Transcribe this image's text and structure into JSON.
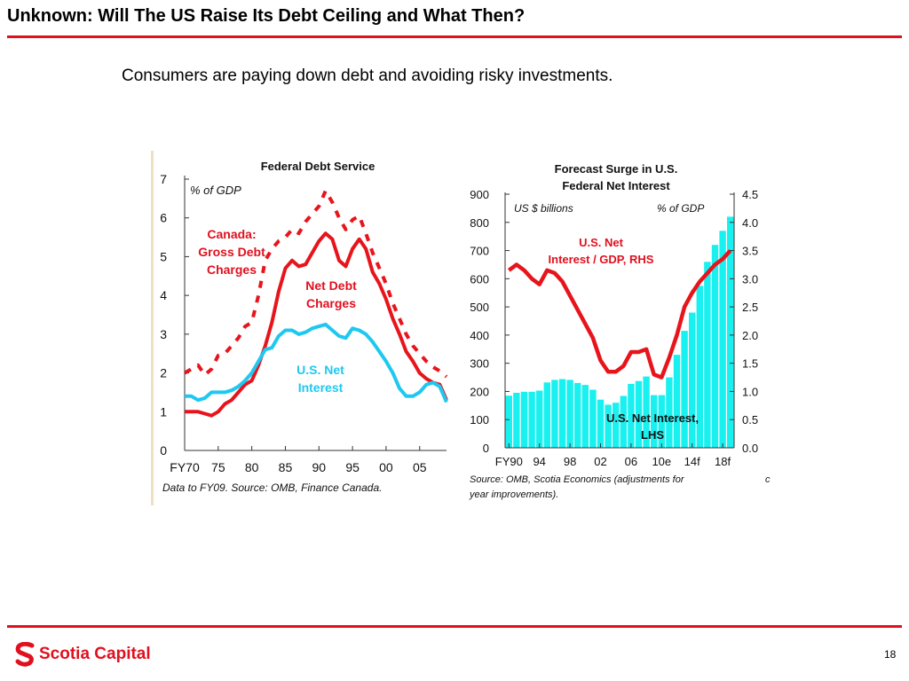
{
  "slide": {
    "title": "Unknown: Will The US Raise Its Debt Ceiling and What Then?",
    "subtitle": "Consumers are paying down debt and avoiding risky investments.",
    "page_number": "18",
    "logo_text": "Scotia Capital"
  },
  "colors": {
    "accent": "#e0101e",
    "canada_line": "#e8141c",
    "us_line": "#1ec8f0",
    "us_bars": "#19f0f0"
  },
  "chart_data": [
    {
      "type": "line",
      "title": "Federal Debt Service",
      "ylabel": "% of GDP",
      "xlabel": "",
      "ylim": [
        0,
        7
      ],
      "xlim": [
        1970,
        2009
      ],
      "yticks": [
        "0",
        "1",
        "2",
        "3",
        "4",
        "5",
        "6",
        "7"
      ],
      "xtick_values": [
        1970,
        1975,
        1980,
        1985,
        1990,
        1995,
        2000,
        2005
      ],
      "xtick_labels": [
        "FY70",
        "75",
        "80",
        "85",
        "90",
        "95",
        "00",
        "05"
      ],
      "grid": false,
      "series": [
        {
          "name": "Canada: Gross Debt Charges",
          "style": "dashed",
          "x": [
            1970,
            1971,
            1972,
            1973,
            1974,
            1975,
            1976,
            1977,
            1978,
            1979,
            1980,
            1981,
            1982,
            1983,
            1984,
            1985,
            1986,
            1987,
            1988,
            1989,
            1990,
            1991,
            1992,
            1993,
            1994,
            1995,
            1996,
            1997,
            1998,
            1999,
            2000,
            2001,
            2002,
            2003,
            2004,
            2005,
            2006,
            2007,
            2008,
            2009
          ],
          "values": [
            2.0,
            2.1,
            2.2,
            1.95,
            2.1,
            2.45,
            2.5,
            2.7,
            2.9,
            3.2,
            3.3,
            4.0,
            4.9,
            5.2,
            5.4,
            5.5,
            5.7,
            5.6,
            5.9,
            6.1,
            6.3,
            6.7,
            6.4,
            6.0,
            5.7,
            5.95,
            6.05,
            5.6,
            5.1,
            4.7,
            4.3,
            3.8,
            3.4,
            3.0,
            2.7,
            2.5,
            2.3,
            2.15,
            2.05,
            1.9
          ]
        },
        {
          "name": "Net Debt Charges",
          "style": "solid",
          "x": [
            1970,
            1971,
            1972,
            1973,
            1974,
            1975,
            1976,
            1977,
            1978,
            1979,
            1980,
            1981,
            1982,
            1983,
            1984,
            1985,
            1986,
            1987,
            1988,
            1989,
            1990,
            1991,
            1992,
            1993,
            1994,
            1995,
            1996,
            1997,
            1998,
            1999,
            2000,
            2001,
            2002,
            2003,
            2004,
            2005,
            2006,
            2007,
            2008,
            2009
          ],
          "values": [
            1.0,
            1.0,
            1.0,
            0.95,
            0.9,
            1.0,
            1.2,
            1.3,
            1.5,
            1.7,
            1.8,
            2.2,
            2.7,
            3.3,
            4.1,
            4.7,
            4.9,
            4.75,
            4.8,
            5.1,
            5.4,
            5.6,
            5.45,
            4.9,
            4.75,
            5.2,
            5.45,
            5.2,
            4.6,
            4.3,
            3.9,
            3.4,
            3.0,
            2.55,
            2.3,
            2.0,
            1.85,
            1.75,
            1.7,
            1.3
          ]
        },
        {
          "name": "U.S. Net Interest",
          "style": "solid",
          "x": [
            1970,
            1971,
            1972,
            1973,
            1974,
            1975,
            1976,
            1977,
            1978,
            1979,
            1980,
            1981,
            1982,
            1983,
            1984,
            1985,
            1986,
            1987,
            1988,
            1989,
            1990,
            1991,
            1992,
            1993,
            1994,
            1995,
            1996,
            1997,
            1998,
            1999,
            2000,
            2001,
            2002,
            2003,
            2004,
            2005,
            2006,
            2007,
            2008,
            2009
          ],
          "values": [
            1.4,
            1.4,
            1.3,
            1.35,
            1.5,
            1.5,
            1.5,
            1.55,
            1.65,
            1.8,
            2.0,
            2.3,
            2.6,
            2.65,
            2.95,
            3.1,
            3.1,
            3.0,
            3.05,
            3.15,
            3.2,
            3.25,
            3.1,
            2.95,
            2.9,
            3.15,
            3.1,
            3.0,
            2.8,
            2.55,
            2.3,
            2.0,
            1.6,
            1.4,
            1.4,
            1.5,
            1.7,
            1.75,
            1.65,
            1.25
          ]
        }
      ],
      "annotations": [
        {
          "text_lines": [
            "Canada:",
            "Gross Debt",
            "Charges"
          ],
          "color": "red"
        },
        {
          "text_lines": [
            "Net Debt",
            "Charges"
          ],
          "color": "red"
        },
        {
          "text_lines": [
            "U.S. Net",
            "Interest"
          ],
          "color": "cyan"
        }
      ],
      "source": "Data to FY09. Source: OMB, Finance Canada."
    },
    {
      "type": "bar",
      "title": "Forecast Surge in U.S. Federal Net Interest",
      "title_lines": [
        "Forecast Surge in U.S.",
        "Federal Net Interest"
      ],
      "ylabel": "US $ billions",
      "y2label": "% of GDP",
      "ylim": [
        0,
        900
      ],
      "y2lim": [
        0,
        4.5
      ],
      "yticks": [
        "0",
        "100",
        "200",
        "300",
        "400",
        "500",
        "600",
        "700",
        "800",
        "900"
      ],
      "y2ticks": [
        "0.0",
        "0.5",
        "1.0",
        "1.5",
        "2.0",
        "2.5",
        "3.0",
        "3.5",
        "4.0",
        "4.5"
      ],
      "xtick_values": [
        1990,
        1994,
        1998,
        2002,
        2006,
        2010,
        2014,
        2018
      ],
      "xtick_labels": [
        "FY90",
        "94",
        "98",
        "02",
        "06",
        "10e",
        "14f",
        "18f"
      ],
      "grid": false,
      "x": [
        1990,
        1991,
        1992,
        1993,
        1994,
        1995,
        1996,
        1997,
        1998,
        1999,
        2000,
        2001,
        2002,
        2003,
        2004,
        2005,
        2006,
        2007,
        2008,
        2009,
        2010,
        2011,
        2012,
        2013,
        2014,
        2015,
        2016,
        2017,
        2018,
        2019
      ],
      "series": [
        {
          "name": "U.S. Net Interest, LHS",
          "type": "bar",
          "axis": "left",
          "values": [
            185,
            195,
            199,
            199,
            203,
            232,
            241,
            244,
            241,
            230,
            223,
            206,
            171,
            153,
            160,
            184,
            227,
            237,
            253,
            187,
            187,
            250,
            330,
            415,
            480,
            575,
            660,
            720,
            770,
            820
          ]
        },
        {
          "name": "U.S. Net Interest / GDP, RHS",
          "type": "line",
          "axis": "right",
          "values": [
            3.15,
            3.25,
            3.15,
            3.0,
            2.9,
            3.15,
            3.1,
            2.95,
            2.7,
            2.45,
            2.2,
            1.95,
            1.55,
            1.35,
            1.35,
            1.45,
            1.7,
            1.7,
            1.75,
            1.3,
            1.25,
            1.6,
            2.0,
            2.5,
            2.75,
            2.95,
            3.1,
            3.25,
            3.35,
            3.5
          ]
        }
      ],
      "axis_tags": {
        "left": "US $ billions",
        "right": "% of GDP"
      },
      "annotations": [
        {
          "text_lines": [
            "U.S. Net",
            "Interest / GDP, RHS"
          ],
          "color": "red"
        },
        {
          "text_lines": [
            "U.S. Net Interest,",
            "LHS"
          ],
          "color": "black"
        }
      ],
      "source_lines": [
        "Source: OMB, Scotia Economics (adjustments for",
        "year improvements)."
      ],
      "truncated_char": "c"
    }
  ]
}
